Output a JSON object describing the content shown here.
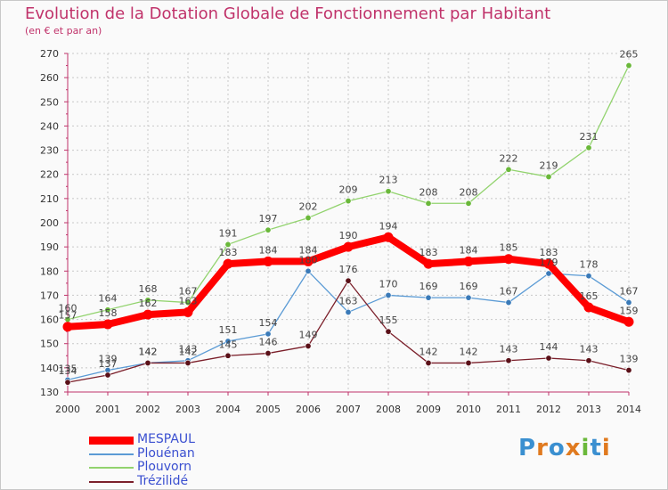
{
  "title": "Evolution de la Dotation Globale de Fonctionnement par Habitant",
  "subtitle": "(en € et par an)",
  "logo": {
    "letters": [
      "P",
      "r",
      "o",
      "x",
      "i",
      "t",
      "i"
    ],
    "colors": [
      "#3a8fd0",
      "#e07a1f",
      "#3a8fd0",
      "#e07a1f",
      "#6ab83a",
      "#3a8fd0",
      "#e07a1f"
    ]
  },
  "chart_data": {
    "type": "line",
    "x": [
      "2000",
      "2001",
      "2002",
      "2003",
      "2004",
      "2005",
      "2006",
      "2007",
      "2008",
      "2009",
      "2010",
      "2011",
      "2012",
      "2013",
      "2014"
    ],
    "ylim": [
      130,
      270
    ],
    "yticks": [
      130,
      140,
      150,
      160,
      170,
      180,
      190,
      200,
      210,
      220,
      230,
      240,
      250,
      260,
      270
    ],
    "grid": true,
    "legend": "bottom-left",
    "series": [
      {
        "name": "MESPAUL",
        "color": "#ff0000",
        "values": [
          157,
          158,
          162,
          163,
          183,
          184,
          184,
          190,
          194,
          183,
          184,
          185,
          183,
          165,
          159
        ]
      },
      {
        "name": "Plouénan",
        "color": "#5b9bd5",
        "values": [
          135,
          139,
          142,
          143,
          151,
          154,
          180,
          163,
          170,
          169,
          169,
          167,
          179,
          178,
          167
        ]
      },
      {
        "name": "Plouvorn",
        "color": "#92d36e",
        "values": [
          160,
          164,
          168,
          167,
          191,
          197,
          202,
          209,
          213,
          208,
          208,
          222,
          219,
          231,
          265
        ]
      },
      {
        "name": "Trézilidé",
        "color": "#7b1f2a",
        "values": [
          134,
          137,
          142,
          142,
          145,
          146,
          149,
          176,
          155,
          142,
          142,
          143,
          144,
          143,
          139
        ]
      }
    ]
  }
}
